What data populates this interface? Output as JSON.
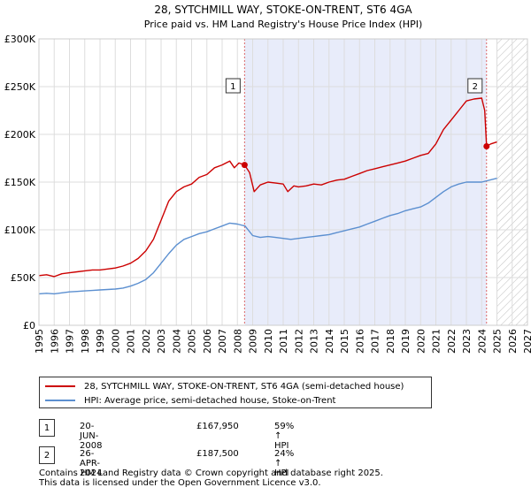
{
  "chart_data": {
    "type": "line",
    "title": "28, SYTCHMILL WAY, STOKE-ON-TRENT, ST6 4GA",
    "subtitle": "Price paid vs. HM Land Registry's House Price Index (HPI)",
    "xlim": [
      1995,
      2027
    ],
    "ylim": [
      0,
      300000
    ],
    "y_ticks": [
      0,
      50000,
      100000,
      150000,
      200000,
      250000,
      300000
    ],
    "y_tick_labels": [
      "£0",
      "£50K",
      "£100K",
      "£150K",
      "£200K",
      "£250K",
      "£300K"
    ],
    "x_ticks": [
      "1995",
      "1996",
      "1997",
      "1998",
      "1999",
      "2000",
      "2001",
      "2002",
      "2003",
      "2004",
      "2005",
      "2006",
      "2007",
      "2008",
      "2009",
      "2010",
      "2011",
      "2012",
      "2013",
      "2014",
      "2015",
      "2016",
      "2017",
      "2018",
      "2019",
      "2020",
      "2021",
      "2022",
      "2023",
      "2024",
      "2025",
      "2026",
      "2027"
    ],
    "grid": true,
    "shaded_region": [
      2008.47,
      2024.32
    ],
    "hatched_region": [
      2025.0,
      2027
    ],
    "series": [
      {
        "name": "28, SYTCHMILL WAY, STOKE-ON-TRENT, ST6 4GA (semi-detached house)",
        "color": "#cc0000",
        "x": [
          1995.0,
          1995.5,
          1996.0,
          1996.5,
          1997.0,
          1997.5,
          1998.0,
          1998.5,
          1999.0,
          1999.5,
          2000.0,
          2000.5,
          2001.0,
          2001.5,
          2002.0,
          2002.5,
          2003.0,
          2003.5,
          2004.0,
          2004.5,
          2005.0,
          2005.5,
          2006.0,
          2006.5,
          2007.0,
          2007.5,
          2007.8,
          2008.1,
          2008.47,
          2008.8,
          2009.1,
          2009.5,
          2010.0,
          2010.5,
          2011.0,
          2011.3,
          2011.7,
          2012.0,
          2012.5,
          2013.0,
          2013.5,
          2014.0,
          2014.5,
          2015.0,
          2015.5,
          2016.0,
          2016.5,
          2017.0,
          2017.5,
          2018.0,
          2018.5,
          2019.0,
          2019.5,
          2020.0,
          2020.5,
          2021.0,
          2021.5,
          2022.0,
          2022.5,
          2023.0,
          2023.5,
          2024.0,
          2024.2,
          2024.32,
          2024.6,
          2025.0
        ],
        "values": [
          52000,
          53000,
          51000,
          54000,
          55000,
          56000,
          57000,
          58000,
          58000,
          59000,
          60000,
          62000,
          65000,
          70000,
          78000,
          90000,
          110000,
          130000,
          140000,
          145000,
          148000,
          155000,
          158000,
          165000,
          168000,
          172000,
          165000,
          170000,
          167950,
          160000,
          140000,
          147000,
          150000,
          149000,
          148000,
          140000,
          146000,
          145000,
          146000,
          148000,
          147000,
          150000,
          152000,
          153000,
          156000,
          159000,
          162000,
          164000,
          166000,
          168000,
          170000,
          172000,
          175000,
          178000,
          180000,
          190000,
          205000,
          215000,
          225000,
          235000,
          237000,
          238000,
          225000,
          187500,
          190000,
          192000
        ]
      },
      {
        "name": "HPI: Average price, semi-detached house, Stoke-on-Trent",
        "color": "#5b8fd0",
        "x": [
          1995.0,
          1995.5,
          1996.0,
          1996.5,
          1997.0,
          1997.5,
          1998.0,
          1998.5,
          1999.0,
          1999.5,
          2000.0,
          2000.5,
          2001.0,
          2001.5,
          2002.0,
          2002.5,
          2003.0,
          2003.5,
          2004.0,
          2004.5,
          2005.0,
          2005.5,
          2006.0,
          2006.5,
          2007.0,
          2007.5,
          2008.0,
          2008.5,
          2009.0,
          2009.5,
          2010.0,
          2010.5,
          2011.0,
          2011.5,
          2012.0,
          2012.5,
          2013.0,
          2013.5,
          2014.0,
          2014.5,
          2015.0,
          2015.5,
          2016.0,
          2016.5,
          2017.0,
          2017.5,
          2018.0,
          2018.5,
          2019.0,
          2019.5,
          2020.0,
          2020.5,
          2021.0,
          2021.5,
          2022.0,
          2022.5,
          2023.0,
          2023.5,
          2024.0,
          2024.5,
          2025.0
        ],
        "values": [
          33000,
          33500,
          33000,
          34000,
          35000,
          35500,
          36000,
          36500,
          37000,
          37500,
          38000,
          39000,
          41000,
          44000,
          48000,
          55000,
          65000,
          75000,
          84000,
          90000,
          93000,
          96000,
          98000,
          101000,
          104000,
          107000,
          106000,
          104000,
          94000,
          92000,
          93000,
          92000,
          91000,
          90000,
          91000,
          92000,
          93000,
          94000,
          95000,
          97000,
          99000,
          101000,
          103000,
          106000,
          109000,
          112000,
          115000,
          117000,
          120000,
          122000,
          124000,
          128000,
          134000,
          140000,
          145000,
          148000,
          150000,
          150000,
          150000,
          152000,
          154000
        ]
      }
    ],
    "annotations": [
      {
        "label": "1",
        "x": 2008.47,
        "value": 167950
      },
      {
        "label": "2",
        "x": 2024.32,
        "value": 187500
      }
    ]
  },
  "legend": {
    "items": [
      {
        "label": "28, SYTCHMILL WAY, STOKE-ON-TRENT, ST6 4GA (semi-detached house)",
        "color": "#cc0000"
      },
      {
        "label": "HPI: Average price, semi-detached house, Stoke-on-Trent",
        "color": "#5b8fd0"
      }
    ]
  },
  "transactions": [
    {
      "num": "1",
      "date": "20-JUN-2008",
      "price": "£167,950",
      "hpi": "59% ↑ HPI"
    },
    {
      "num": "2",
      "date": "26-APR-2024",
      "price": "£187,500",
      "hpi": "24% ↑ HPI"
    }
  ],
  "footer": {
    "line1": "Contains HM Land Registry data © Crown copyright and database right 2025.",
    "line2": "This data is licensed under the Open Government Licence v3.0."
  }
}
